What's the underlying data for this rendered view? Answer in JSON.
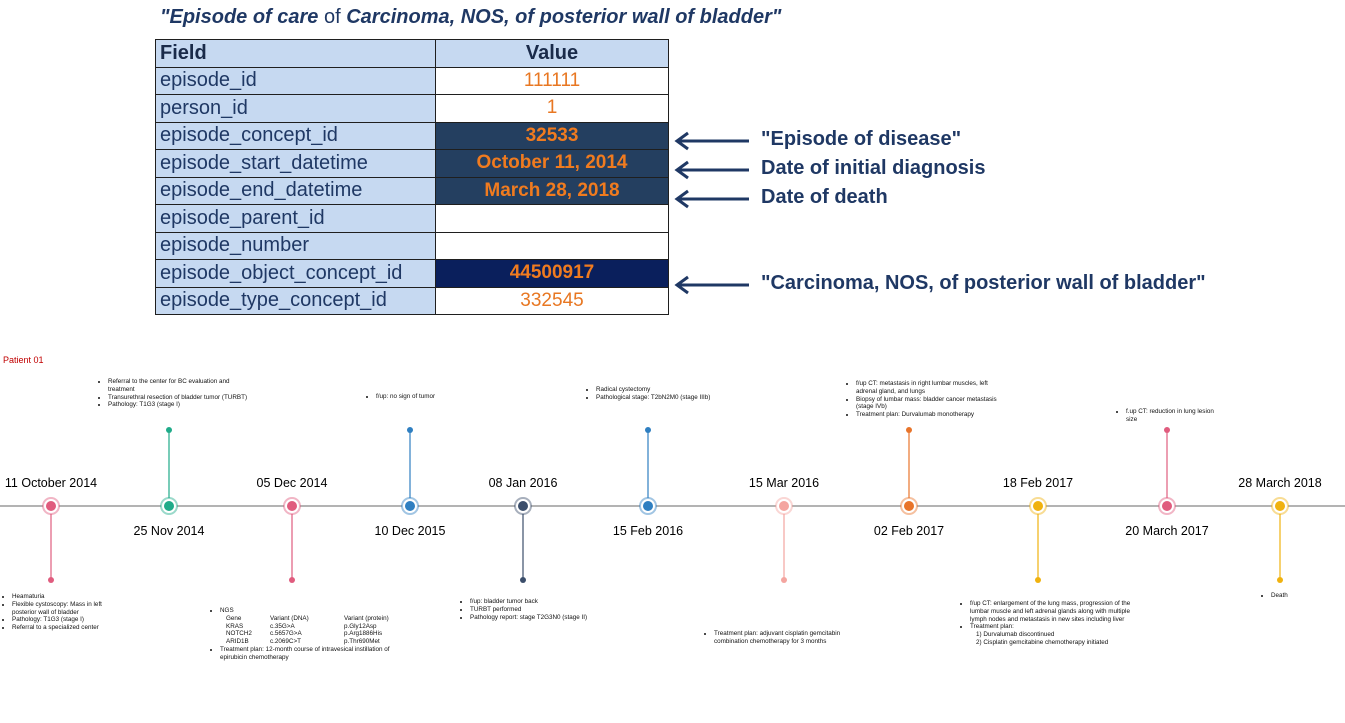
{
  "title": {
    "quote_open": "\"",
    "part1": "Episode of care",
    "part2": "of",
    "part3": "Carcinoma, NOS, of posterior wall of bladder",
    "quote_close": "\""
  },
  "table": {
    "header_field": "Field",
    "header_value": "Value",
    "rows": [
      {
        "field": "episode_id",
        "value": "111111"
      },
      {
        "field": "person_id",
        "value": "1"
      },
      {
        "field": "episode_concept_id",
        "value": "32533"
      },
      {
        "field": "episode_start_datetime",
        "value": "October 11, 2014"
      },
      {
        "field": "episode_end_datetime",
        "value": "March 28, 2018"
      },
      {
        "field": "episode_parent_id",
        "value": ""
      },
      {
        "field": "episode_number",
        "value": ""
      },
      {
        "field": "episode_object_concept_id",
        "value": "44500917"
      },
      {
        "field": "episode_type_concept_id",
        "value": "332545"
      }
    ]
  },
  "annotations": [
    {
      "row": "episode_concept_id",
      "text": "\"Episode of disease\""
    },
    {
      "row": "episode_start_datetime",
      "text": "Date of initial diagnosis"
    },
    {
      "row": "episode_end_datetime",
      "text": "Date of death"
    },
    {
      "row": "episode_object_concept_id",
      "text": "\"Carcinoma, NOS, of posterior wall of bladder\""
    }
  ],
  "timeline": {
    "patient_label": "Patient 01",
    "colors": {
      "pink": "#e05c7e",
      "teal": "#1fab89",
      "blue": "#2f7fc1",
      "navy": "#3b4e6b",
      "peach": "#f4a5a0",
      "orange": "#e8742a",
      "gold": "#f0b20f",
      "line": "#9a9a9a"
    },
    "events": [
      {
        "date": "11 October 2014",
        "color": "pink",
        "items": [
          "Heamaturia",
          "Flexible cystoscopy: Mass in left posterior wall of bladder",
          "Pathology: T1G3 (stage I)",
          "Referral to a specialized center"
        ]
      },
      {
        "date": "25 Nov 2014",
        "color": "teal",
        "items": [
          "Referral to the center for BC evaluation and treatment",
          "Transurethral resection of bladder tumor (TURBT)",
          "Pathology: T1G3 (stage I)"
        ]
      },
      {
        "date": "05 Dec 2014",
        "color": "pink",
        "ngs_label": "NGS",
        "ngs_headers": [
          "Gene",
          "Variant (DNA)",
          "Variant (protein)"
        ],
        "ngs_rows": [
          [
            "KRAS",
            "c.35G>A",
            "p.Gly12Asp"
          ],
          [
            "NOTCH2",
            "c.5657G>A",
            "p.Arg1886His"
          ],
          [
            "ARID1B",
            "c.2069C>T",
            "p.Thr690Met"
          ]
        ],
        "items": [
          "Treatment plan: 12-month course of intravesical instillation of epirubicin chemotherapy"
        ]
      },
      {
        "date": "10 Dec 2015",
        "color": "blue",
        "items": [
          "f/up: no sign of tumor"
        ]
      },
      {
        "date": "08 Jan 2016",
        "color": "navy",
        "items": [
          "f/up: bladder tumor back",
          "TURBT performed",
          "Pathology report: stage T2G3N0 (stage II)"
        ]
      },
      {
        "date": "15 Feb 2016",
        "color": "blue",
        "items": [
          "Radical cystectomy",
          "Pathological stage: T2bN2M0 (stage IIIb)"
        ]
      },
      {
        "date": "15 Mar 2016",
        "color": "peach",
        "items": [
          "Treatment plan: adjuvant cisplatin gemcitabin combination chemotherapy for 3 months"
        ]
      },
      {
        "date": "02 Feb 2017",
        "color": "orange",
        "items": [
          "f/up CT: metastasis in right lumbar muscles, left adrenal gland, and lungs",
          "Biopsy of lumbar mass: bladder cancer metastasis (stage IVb)",
          "Treatment plan: Durvalumab monotherapy"
        ]
      },
      {
        "date": "18 Feb 2017",
        "color": "gold",
        "items": [
          "f/up CT: enlargement of the lung mass, progression of the lumbar muscle and left adrenal glands along with multiple lymph nodes and metastasis in new sites including liver",
          "Treatment plan:"
        ],
        "subitems": [
          "1) Durvalumab discontinued",
          "2) Cisplatin gemcitabine chemotherapy initiated"
        ]
      },
      {
        "date": "20 March 2017",
        "color": "pink",
        "items": [
          "f.up CT: reduction in lung lesion size"
        ]
      },
      {
        "date": "28 March 2018",
        "color": "gold",
        "items": [
          "Death"
        ]
      }
    ]
  }
}
